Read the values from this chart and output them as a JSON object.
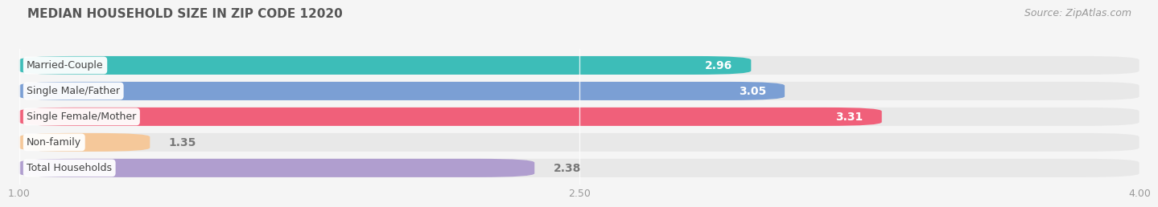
{
  "title": "MEDIAN HOUSEHOLD SIZE IN ZIP CODE 12020",
  "source": "Source: ZipAtlas.com",
  "categories": [
    "Married-Couple",
    "Single Male/Father",
    "Single Female/Mother",
    "Non-family",
    "Total Households"
  ],
  "values": [
    2.96,
    3.05,
    3.31,
    1.35,
    2.38
  ],
  "bar_colors": [
    "#3dbdb8",
    "#7b9fd4",
    "#f0607a",
    "#f5c89a",
    "#b09ecf"
  ],
  "bar_bg_color": "#e8e8e8",
  "value_inside": [
    true,
    true,
    true,
    false,
    false
  ],
  "value_colors_inside": "#ffffff",
  "value_colors_outside": "#888888",
  "xlim_min": 1.0,
  "xlim_max": 4.0,
  "xticks": [
    1.0,
    2.5,
    4.0
  ],
  "title_fontsize": 11,
  "source_fontsize": 9,
  "bar_label_fontsize": 10,
  "category_fontsize": 9,
  "bar_height": 0.72,
  "bar_gap": 0.28,
  "background_color": "#f5f5f5",
  "rounding": 0.15
}
